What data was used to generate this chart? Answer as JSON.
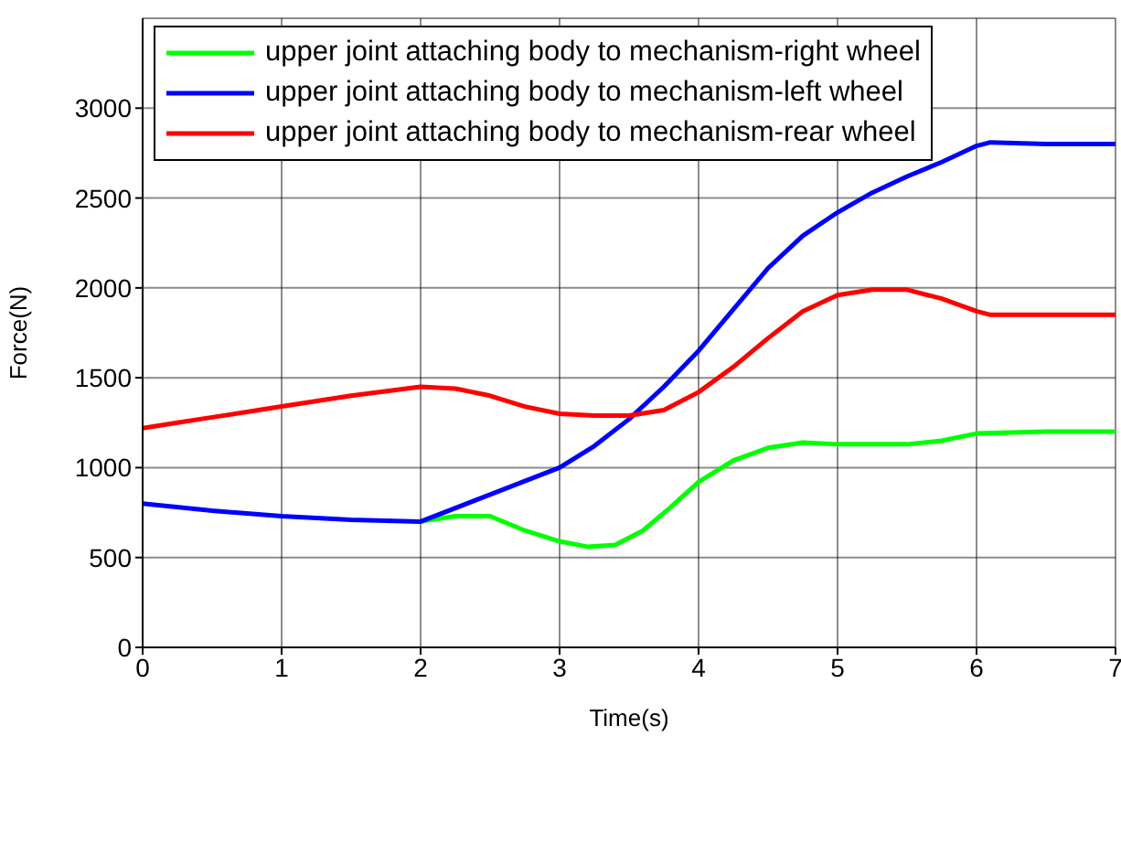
{
  "chart_data": {
    "type": "line",
    "xlabel": "Time(s)",
    "ylabel": "Force(N)",
    "xlim": [
      0,
      7
    ],
    "xticks": [
      0,
      1,
      2,
      3,
      4,
      5,
      6,
      7
    ],
    "ylim": [
      0,
      3500
    ],
    "yticks": [
      0,
      500,
      1000,
      1500,
      2000,
      2500,
      3000
    ],
    "grid": true,
    "legend": "top left",
    "line_style": "solid",
    "marker": "none",
    "series": [
      {
        "name": "upper joint attaching body to mechanism-right wheel",
        "color": "#00ff00",
        "x": [
          2,
          2.25,
          2.5,
          2.75,
          3,
          3.2,
          3.4,
          3.6,
          3.8,
          4,
          4.25,
          4.5,
          4.75,
          5,
          5.25,
          5.5,
          5.75,
          6,
          6.5,
          7
        ],
        "values": [
          700,
          730,
          730,
          650,
          590,
          560,
          570,
          650,
          780,
          920,
          1040,
          1110,
          1140,
          1130,
          1130,
          1130,
          1150,
          1190,
          1200,
          1200
        ]
      },
      {
        "name": "upper joint attaching body to mechanism-left wheel",
        "color": "#0000ff",
        "x": [
          0,
          0.5,
          1,
          1.5,
          2,
          2.5,
          3,
          3.25,
          3.5,
          3.75,
          4,
          4.25,
          4.5,
          4.75,
          5,
          5.25,
          5.5,
          5.75,
          6,
          6.1,
          6.5,
          7
        ],
        "values": [
          800,
          760,
          730,
          710,
          700,
          850,
          1000,
          1120,
          1270,
          1450,
          1650,
          1880,
          2110,
          2290,
          2420,
          2530,
          2620,
          2700,
          2790,
          2810,
          2800,
          2800
        ]
      },
      {
        "name": "upper joint attaching body to mechanism-rear wheel",
        "color": "#ff0000",
        "x": [
          0,
          0.25,
          0.5,
          0.75,
          1,
          1.5,
          2,
          2.25,
          2.5,
          2.75,
          3,
          3.25,
          3.5,
          3.75,
          4,
          4.25,
          4.5,
          4.75,
          5,
          5.25,
          5.5,
          5.75,
          6,
          6.1,
          7
        ],
        "values": [
          1220,
          1250,
          1280,
          1310,
          1340,
          1400,
          1450,
          1440,
          1400,
          1340,
          1300,
          1290,
          1290,
          1320,
          1420,
          1560,
          1720,
          1870,
          1960,
          1990,
          1990,
          1940,
          1870,
          1850,
          1850
        ]
      }
    ]
  }
}
